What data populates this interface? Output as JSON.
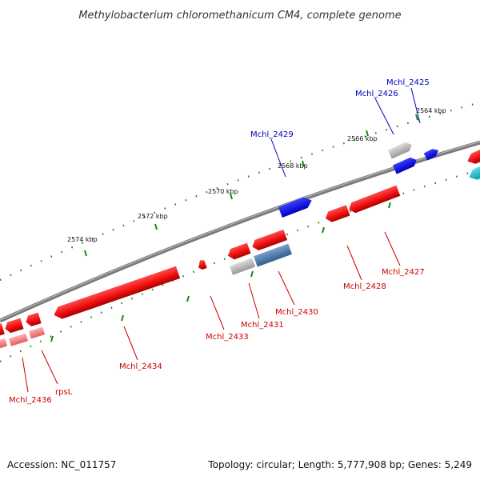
{
  "title": "Methylobacterium chloromethanicum CM4, complete genome",
  "footer": {
    "accession": "Accession: NC_011757",
    "topology": "Topology: circular; Length: 5,777,908 bp; Genes: 5,249"
  },
  "ticks": [
    {
      "label": "2564 kbp"
    },
    {
      "label": "2566 kbp"
    },
    {
      "label": "2568 kbp"
    },
    {
      "label": "2570 kbp"
    },
    {
      "label": "2572 kbp"
    },
    {
      "label": "2574 kbp"
    }
  ],
  "genes_upper": [
    {
      "label": "Mchl_2425"
    },
    {
      "label": "Mchl_2426"
    },
    {
      "label": "Mchl_2429"
    }
  ],
  "genes_lower": [
    {
      "label": "Mchl_2427"
    },
    {
      "label": "Mchl_2428"
    },
    {
      "label": "Mchl_2430"
    },
    {
      "label": "Mchl_2431"
    },
    {
      "label": "Mchl_2433"
    },
    {
      "label": "Mchl_2434"
    },
    {
      "label": "rpsL"
    },
    {
      "label": "Mchl_2436"
    }
  ],
  "colors": {
    "backbone": "#7a7a7a",
    "forward_gene": "#1010ee",
    "reverse_gene": "#ee1111",
    "pseudo_gene": "#aaaaaa",
    "rna_gene": "#11bbcc",
    "steelblue_gene": "#4477aa",
    "upper_label": "#0000bb",
    "lower_label": "#cc0000",
    "tick": "#118811"
  }
}
